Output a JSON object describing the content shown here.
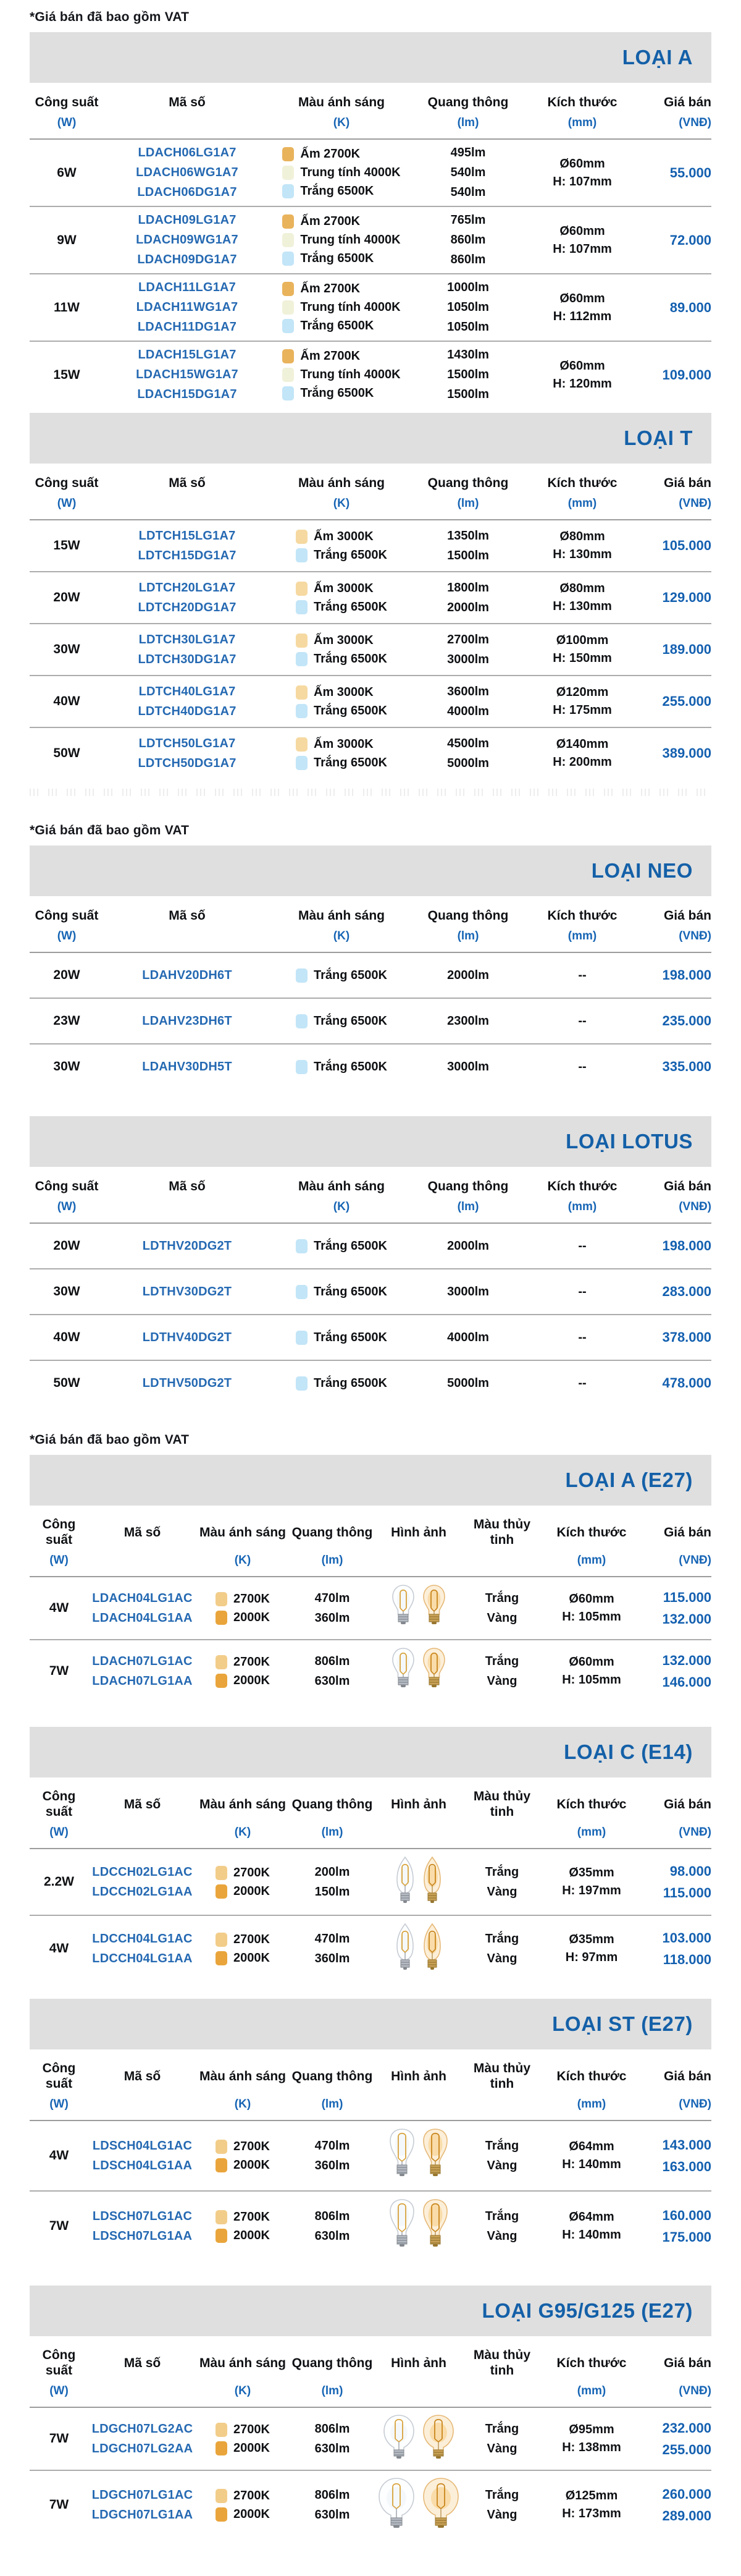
{
  "note": "*Giá bán đã bao gồm VAT",
  "colors": {
    "title_blue": "#1460A8",
    "link_blue": "#2569B2",
    "price_blue": "#1460B0",
    "unit_blue": "#1765B5",
    "bar_gray": "#DFDFDF",
    "divider_gray": "#ACACAC",
    "swatches": {
      "warm2700": "#E9B35C",
      "warm3000": "#F6D9A1",
      "neutral4000": "#F0F1D9",
      "white6500": "#C2E5F8",
      "k2700": "#F2CD8A",
      "k2000": "#E9A53B"
    }
  },
  "headers": {
    "simple": [
      {
        "key": "power",
        "label": "Công suất",
        "unit": "(W)"
      },
      {
        "key": "code",
        "label": "Mã số",
        "unit": ""
      },
      {
        "key": "light",
        "label": "Màu ánh sáng",
        "unit": "(K)"
      },
      {
        "key": "lumen",
        "label": "Quang thông",
        "unit": "(lm)"
      },
      {
        "key": "size",
        "label": "Kích thước",
        "unit": "(mm)"
      },
      {
        "key": "price",
        "label": "Giá bán",
        "unit": "(VNĐ)"
      }
    ],
    "photo": [
      {
        "key": "power",
        "label": "Công suất",
        "unit": "(W)"
      },
      {
        "key": "code",
        "label": "Mã số",
        "unit": ""
      },
      {
        "key": "light",
        "label": "Màu ánh sáng",
        "unit": "(K)"
      },
      {
        "key": "lumen",
        "label": "Quang thông",
        "unit": "(lm)"
      },
      {
        "key": "image",
        "label": "Hình ảnh",
        "unit": ""
      },
      {
        "key": "glass",
        "label": "Màu thủy tinh",
        "unit": "",
        "wrap": true
      },
      {
        "key": "size",
        "label": "Kích thước",
        "unit": "(mm)"
      },
      {
        "key": "price",
        "label": "Giá bán",
        "unit": "(VNĐ)"
      }
    ]
  },
  "sections": [
    {
      "id": "loai-a",
      "title": "LOẠI A",
      "layout": "simple",
      "note_above": true,
      "rows": [
        {
          "power": "6W",
          "codes": [
            "LDACH06LG1A7",
            "LDACH06WG1A7",
            "LDACH06DG1A7"
          ],
          "lights": [
            {
              "sw": "warm2700",
              "label": "Ấm 2700K"
            },
            {
              "sw": "neutral4000",
              "label": "Trung tính 4000K"
            },
            {
              "sw": "white6500",
              "label": "Trắng 6500K"
            }
          ],
          "lumens": [
            "495lm",
            "540lm",
            "540lm"
          ],
          "size": [
            "Ø60mm",
            "H: 107mm"
          ],
          "prices": [
            "55.000"
          ]
        },
        {
          "power": "9W",
          "codes": [
            "LDACH09LG1A7",
            "LDACH09WG1A7",
            "LDACH09DG1A7"
          ],
          "lights": [
            {
              "sw": "warm2700",
              "label": "Ấm 2700K"
            },
            {
              "sw": "neutral4000",
              "label": "Trung tính 4000K"
            },
            {
              "sw": "white6500",
              "label": "Trắng 6500K"
            }
          ],
          "lumens": [
            "765lm",
            "860lm",
            "860lm"
          ],
          "size": [
            "Ø60mm",
            "H: 107mm"
          ],
          "prices": [
            "72.000"
          ]
        },
        {
          "power": "11W",
          "codes": [
            "LDACH11LG1A7",
            "LDACH11WG1A7",
            "LDACH11DG1A7"
          ],
          "lights": [
            {
              "sw": "warm2700",
              "label": "Ấm 2700K"
            },
            {
              "sw": "neutral4000",
              "label": "Trung tính 4000K"
            },
            {
              "sw": "white6500",
              "label": "Trắng 6500K"
            }
          ],
          "lumens": [
            "1000lm",
            "1050lm",
            "1050lm"
          ],
          "size": [
            "Ø60mm",
            "H: 112mm"
          ],
          "prices": [
            "89.000"
          ]
        },
        {
          "power": "15W",
          "codes": [
            "LDACH15LG1A7",
            "LDACH15WG1A7",
            "LDACH15DG1A7"
          ],
          "lights": [
            {
              "sw": "warm2700",
              "label": "Ấm 2700K"
            },
            {
              "sw": "neutral4000",
              "label": "Trung tính 4000K"
            },
            {
              "sw": "white6500",
              "label": "Trắng 6500K"
            }
          ],
          "lumens": [
            "1430lm",
            "1500lm",
            "1500lm"
          ],
          "size": [
            "Ø60mm",
            "H: 120mm"
          ],
          "prices": [
            "109.000"
          ]
        }
      ]
    },
    {
      "id": "loai-t",
      "title": "LOẠI T",
      "layout": "simple",
      "dashed_after": true,
      "rows": [
        {
          "power": "15W",
          "codes": [
            "LDTCH15LG1A7",
            "LDTCH15DG1A7"
          ],
          "lights": [
            {
              "sw": "warm3000",
              "label": "Ấm 3000K"
            },
            {
              "sw": "white6500",
              "label": "Trắng 6500K"
            }
          ],
          "lumens": [
            "1350lm",
            "1500lm"
          ],
          "size": [
            "Ø80mm",
            "H: 130mm"
          ],
          "prices": [
            "105.000"
          ]
        },
        {
          "power": "20W",
          "codes": [
            "LDTCH20LG1A7",
            "LDTCH20DG1A7"
          ],
          "lights": [
            {
              "sw": "warm3000",
              "label": "Ấm 3000K"
            },
            {
              "sw": "white6500",
              "label": "Trắng 6500K"
            }
          ],
          "lumens": [
            "1800lm",
            "2000lm"
          ],
          "size": [
            "Ø80mm",
            "H: 130mm"
          ],
          "prices": [
            "129.000"
          ]
        },
        {
          "power": "30W",
          "codes": [
            "LDTCH30LG1A7",
            "LDTCH30DG1A7"
          ],
          "lights": [
            {
              "sw": "warm3000",
              "label": "Ấm 3000K"
            },
            {
              "sw": "white6500",
              "label": "Trắng 6500K"
            }
          ],
          "lumens": [
            "2700lm",
            "3000lm"
          ],
          "size": [
            "Ø100mm",
            "H: 150mm"
          ],
          "prices": [
            "189.000"
          ]
        },
        {
          "power": "40W",
          "codes": [
            "LDTCH40LG1A7",
            "LDTCH40DG1A7"
          ],
          "lights": [
            {
              "sw": "warm3000",
              "label": "Ấm 3000K"
            },
            {
              "sw": "white6500",
              "label": "Trắng 6500K"
            }
          ],
          "lumens": [
            "3600lm",
            "4000lm"
          ],
          "size": [
            "Ø120mm",
            "H: 175mm"
          ],
          "prices": [
            "255.000"
          ]
        },
        {
          "power": "50W",
          "codes": [
            "LDTCH50LG1A7",
            "LDTCH50DG1A7"
          ],
          "lights": [
            {
              "sw": "warm3000",
              "label": "Ấm 3000K"
            },
            {
              "sw": "white6500",
              "label": "Trắng 6500K"
            }
          ],
          "lumens": [
            "4500lm",
            "5000lm"
          ],
          "size": [
            "Ø140mm",
            "H: 200mm"
          ],
          "prices": [
            "389.000"
          ]
        }
      ]
    },
    {
      "id": "loai-neo",
      "title": "LOẠI NEO",
      "layout": "simple",
      "note_above": true,
      "rows": [
        {
          "power": "20W",
          "codes": [
            "LDAHV20DH6T"
          ],
          "lights": [
            {
              "sw": "white6500",
              "label": "Trắng 6500K"
            }
          ],
          "lumens": [
            "2000lm"
          ],
          "size": [
            "--"
          ],
          "prices": [
            "198.000"
          ]
        },
        {
          "power": "23W",
          "codes": [
            "LDAHV23DH6T"
          ],
          "lights": [
            {
              "sw": "white6500",
              "label": "Trắng 6500K"
            }
          ],
          "lumens": [
            "2300lm"
          ],
          "size": [
            "--"
          ],
          "prices": [
            "235.000"
          ]
        },
        {
          "power": "30W",
          "codes": [
            "LDAHV30DH5T"
          ],
          "lights": [
            {
              "sw": "white6500",
              "label": "Trắng 6500K"
            }
          ],
          "lumens": [
            "3000lm"
          ],
          "size": [
            "--"
          ],
          "prices": [
            "335.000"
          ]
        }
      ]
    },
    {
      "id": "loai-lotus",
      "title": "LOẠI LOTUS",
      "layout": "simple",
      "rows": [
        {
          "power": "20W",
          "codes": [
            "LDTHV20DG2T"
          ],
          "lights": [
            {
              "sw": "white6500",
              "label": "Trắng 6500K"
            }
          ],
          "lumens": [
            "2000lm"
          ],
          "size": [
            "--"
          ],
          "prices": [
            "198.000"
          ]
        },
        {
          "power": "30W",
          "codes": [
            "LDTHV30DG2T"
          ],
          "lights": [
            {
              "sw": "white6500",
              "label": "Trắng 6500K"
            }
          ],
          "lumens": [
            "3000lm"
          ],
          "size": [
            "--"
          ],
          "prices": [
            "283.000"
          ]
        },
        {
          "power": "40W",
          "codes": [
            "LDTHV40DG2T"
          ],
          "lights": [
            {
              "sw": "white6500",
              "label": "Trắng 6500K"
            }
          ],
          "lumens": [
            "4000lm"
          ],
          "size": [
            "--"
          ],
          "prices": [
            "378.000"
          ]
        },
        {
          "power": "50W",
          "codes": [
            "LDTHV50DG2T"
          ],
          "lights": [
            {
              "sw": "white6500",
              "label": "Trắng 6500K"
            }
          ],
          "lumens": [
            "5000lm"
          ],
          "size": [
            "--"
          ],
          "prices": [
            "478.000"
          ]
        }
      ]
    },
    {
      "id": "loai-a-e27",
      "title": "LOẠI A (E27)",
      "layout": "photo",
      "bulb": "a",
      "note_above": true,
      "rows": [
        {
          "power": "4W",
          "codes": [
            "LDACH04LG1AC",
            "LDACH04LG1AA"
          ],
          "lights": [
            {
              "sw": "k2700",
              "label": "2700K"
            },
            {
              "sw": "k2000",
              "label": "2000K"
            }
          ],
          "lumens": [
            "470lm",
            "360lm"
          ],
          "glass": [
            "Trắng",
            "Vàng"
          ],
          "size": [
            "Ø60mm",
            "H: 105mm"
          ],
          "prices": [
            "115.000",
            "132.000"
          ]
        },
        {
          "power": "7W",
          "codes": [
            "LDACH07LG1AC",
            "LDACH07LG1AA"
          ],
          "lights": [
            {
              "sw": "k2700",
              "label": "2700K"
            },
            {
              "sw": "k2000",
              "label": "2000K"
            }
          ],
          "lumens": [
            "806lm",
            "630lm"
          ],
          "glass": [
            "Trắng",
            "Vàng"
          ],
          "size": [
            "Ø60mm",
            "H: 105mm"
          ],
          "prices": [
            "132.000",
            "146.000"
          ]
        }
      ]
    },
    {
      "id": "loai-c-e14",
      "title": "LOẠI C (E14)",
      "layout": "photo",
      "bulb": "c",
      "rows": [
        {
          "power": "2.2W",
          "codes": [
            "LDCCH02LG1AC",
            "LDCCH02LG1AA"
          ],
          "lights": [
            {
              "sw": "k2700",
              "label": "2700K"
            },
            {
              "sw": "k2000",
              "label": "2000K"
            }
          ],
          "lumens": [
            "200lm",
            "150lm"
          ],
          "glass": [
            "Trắng",
            "Vàng"
          ],
          "size": [
            "Ø35mm",
            "H: 197mm"
          ],
          "prices": [
            "98.000",
            "115.000"
          ]
        },
        {
          "power": "4W",
          "codes": [
            "LDCCH04LG1AC",
            "LDCCH04LG1AA"
          ],
          "lights": [
            {
              "sw": "k2700",
              "label": "2700K"
            },
            {
              "sw": "k2000",
              "label": "2000K"
            }
          ],
          "lumens": [
            "470lm",
            "360lm"
          ],
          "glass": [
            "Trắng",
            "Vàng"
          ],
          "size": [
            "Ø35mm",
            "H: 97mm"
          ],
          "prices": [
            "103.000",
            "118.000"
          ]
        }
      ]
    },
    {
      "id": "loai-st-e27",
      "title": "LOẠI ST (E27)",
      "layout": "photo",
      "bulb": "st",
      "rows": [
        {
          "power": "4W",
          "codes": [
            "LDSCH04LG1AC",
            "LDSCH04LG1AA"
          ],
          "lights": [
            {
              "sw": "k2700",
              "label": "2700K"
            },
            {
              "sw": "k2000",
              "label": "2000K"
            }
          ],
          "lumens": [
            "470lm",
            "360lm"
          ],
          "glass": [
            "Trắng",
            "Vàng"
          ],
          "size": [
            "Ø64mm",
            "H: 140mm"
          ],
          "prices": [
            "143.000",
            "163.000"
          ]
        },
        {
          "power": "7W",
          "codes": [
            "LDSCH07LG1AC",
            "LDSCH07LG1AA"
          ],
          "lights": [
            {
              "sw": "k2700",
              "label": "2700K"
            },
            {
              "sw": "k2000",
              "label": "2000K"
            }
          ],
          "lumens": [
            "806lm",
            "630lm"
          ],
          "glass": [
            "Trắng",
            "Vàng"
          ],
          "size": [
            "Ø64mm",
            "H: 140mm"
          ],
          "prices": [
            "160.000",
            "175.000"
          ]
        }
      ]
    },
    {
      "id": "loai-g95-g125-e27",
      "title": "LOẠI G95/G125 (E27)",
      "layout": "photo",
      "bulb": "g95",
      "rows": [
        {
          "power": "7W",
          "codes": [
            "LDGCH07LG2AC",
            "LDGCH07LG2AA"
          ],
          "bulb": "g95",
          "lights": [
            {
              "sw": "k2700",
              "label": "2700K"
            },
            {
              "sw": "k2000",
              "label": "2000K"
            }
          ],
          "lumens": [
            "806lm",
            "630lm"
          ],
          "glass": [
            "Trắng",
            "Vàng"
          ],
          "size": [
            "Ø95mm",
            "H: 138mm"
          ],
          "prices": [
            "232.000",
            "255.000"
          ]
        },
        {
          "power": "7W",
          "codes": [
            "LDGCH07LG1AC",
            "LDGCH07LG1AA"
          ],
          "bulb": "g125",
          "lights": [
            {
              "sw": "k2700",
              "label": "2700K"
            },
            {
              "sw": "k2000",
              "label": "2000K"
            }
          ],
          "lumens": [
            "806lm",
            "630lm"
          ],
          "glass": [
            "Trắng",
            "Vàng"
          ],
          "size": [
            "Ø125mm",
            "H: 173mm"
          ],
          "prices": [
            "260.000",
            "289.000"
          ]
        }
      ]
    }
  ]
}
